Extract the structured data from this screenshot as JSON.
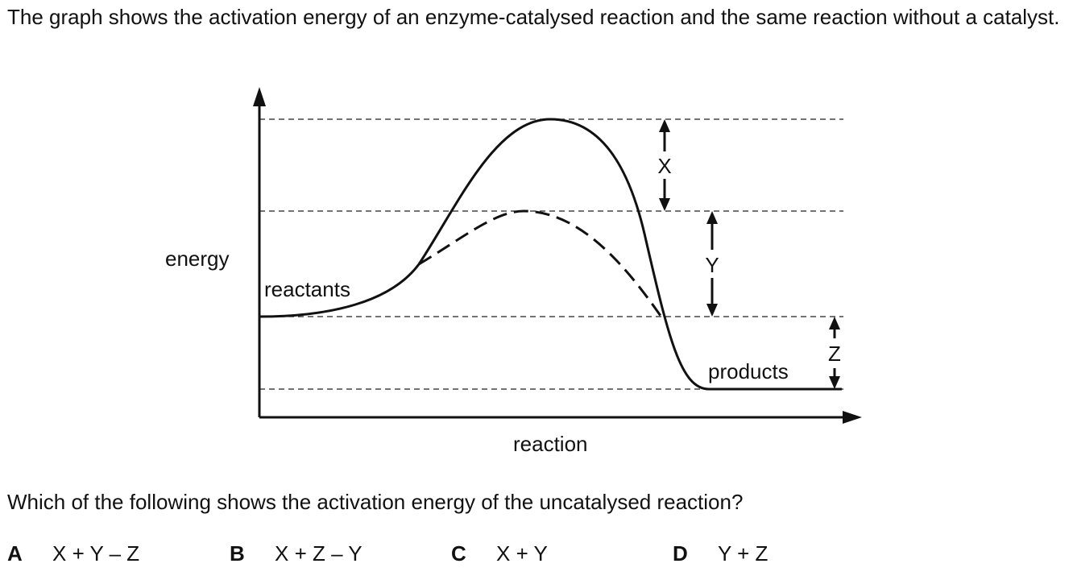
{
  "intro": "The graph shows the activation energy of an enzyme-catalysed reaction and the same reaction without a catalyst.",
  "graph": {
    "y_axis_label": "energy",
    "x_axis_label": "reaction",
    "reactants_label": "reactants",
    "products_label": "products",
    "arrow_x_label": "X",
    "arrow_y_label": "Y",
    "arrow_z_label": "Z"
  },
  "question": "Which of the following shows the activation energy of the uncatalysed reaction?",
  "options": [
    {
      "letter": "A",
      "text": "X + Y – Z"
    },
    {
      "letter": "B",
      "text": "X + Z – Y"
    },
    {
      "letter": "C",
      "text": "X + Y"
    },
    {
      "letter": "D",
      "text": "Y + Z"
    }
  ]
}
